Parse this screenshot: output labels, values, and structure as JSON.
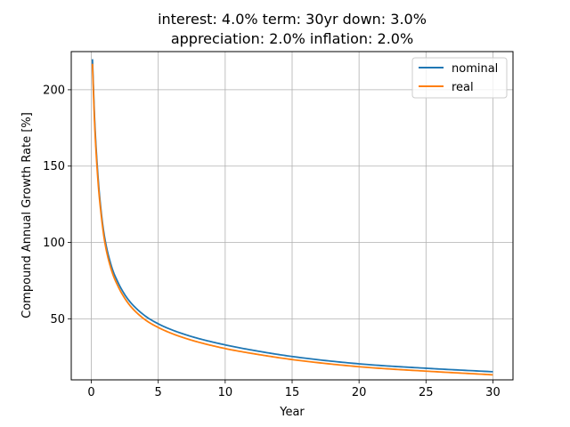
{
  "chart_data": {
    "type": "line",
    "title_lines": [
      "interest: 4.0% term: 30yr down: 3.0%",
      "appreciation: 2.0% inflation: 2.0%"
    ],
    "xlabel": "Year",
    "ylabel": "Compound Annual Growth Rate [%]",
    "xlim": [
      -1.5,
      31.5
    ],
    "ylim": [
      10,
      225
    ],
    "xticks": [
      0,
      5,
      10,
      15,
      20,
      25,
      30
    ],
    "yticks": [
      50,
      100,
      150,
      200
    ],
    "grid": true,
    "legend_position": "top-right",
    "x": [
      0.083,
      0.25,
      0.5,
      0.75,
      1,
      1.5,
      2,
      2.5,
      3,
      4,
      5,
      6,
      7,
      8,
      10,
      12,
      15,
      20,
      25,
      30
    ],
    "series": [
      {
        "name": "nominal",
        "color": "#1f77b4",
        "values": [
          220,
          180,
          143,
          119,
          103,
          84.5,
          73.7,
          65.8,
          60,
          52,
          46.7,
          42.8,
          39.7,
          37.1,
          32.9,
          29.5,
          25.3,
          20.5,
          17.6,
          15.3
        ]
      },
      {
        "name": "real",
        "color": "#ff7f0e",
        "values": [
          217,
          177,
          140,
          117,
          100.5,
          82,
          71.2,
          63.4,
          57.5,
          49.5,
          44.3,
          40.4,
          37.3,
          34.7,
          30.5,
          27.3,
          23.3,
          18.6,
          15.7,
          13.3
        ]
      }
    ]
  }
}
